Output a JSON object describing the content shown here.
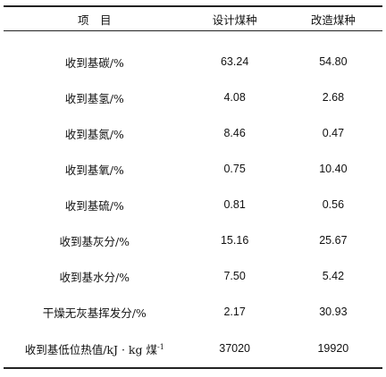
{
  "table": {
    "headers": [
      "项　目",
      "设计煤种",
      "改造煤种"
    ],
    "rows": [
      {
        "item": "收到基碳/%",
        "design": "63.24",
        "modified": "54.80"
      },
      {
        "item": "收到基氢/%",
        "design": "4.08",
        "modified": "2.68"
      },
      {
        "item": "收到基氮/%",
        "design": "8.46",
        "modified": "0.47"
      },
      {
        "item": "收到基氧/%",
        "design": "0.75",
        "modified": "10.40"
      },
      {
        "item": "收到基硫/%",
        "design": "0.81",
        "modified": "0.56"
      },
      {
        "item": "收到基灰分/%",
        "design": "15.16",
        "modified": "25.67"
      },
      {
        "item": "收到基水分/%",
        "design": "7.50",
        "modified": "5.42"
      },
      {
        "item": "干燥无灰基挥发分/%",
        "design": "2.17",
        "modified": "30.93"
      },
      {
        "item": "收到基低位热值/kJ · kg 煤",
        "item_sup": "-1",
        "design": "37020",
        "modified": "19920"
      }
    ]
  }
}
